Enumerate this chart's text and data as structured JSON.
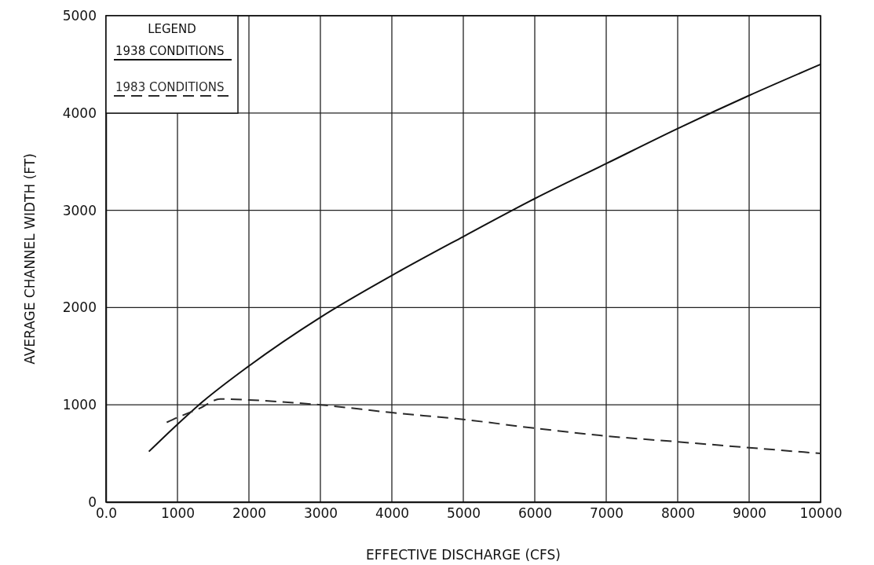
{
  "chart_data": {
    "type": "line",
    "xlabel": "EFFECTIVE DISCHARGE (CFS)",
    "ylabel": "AVERAGE CHANNEL WIDTH (FT)",
    "legend_title": "LEGEND",
    "legend": "top left",
    "grid": true,
    "marker": "none",
    "xlim": [
      0,
      10000
    ],
    "ylim": [
      0,
      5000
    ],
    "xticks": [
      {
        "value": 0,
        "label": "0.0"
      },
      1000,
      2000,
      3000,
      4000,
      5000,
      6000,
      7000,
      8000,
      9000,
      10000
    ],
    "yticks": [
      0,
      1000,
      2000,
      3000,
      4000,
      5000
    ],
    "series": [
      {
        "name": "1938 CONDITIONS",
        "color": "#111111",
        "line_style": "solid",
        "x": [
          600,
          1000,
          1300,
          2000,
          3000,
          4000,
          5000,
          6000,
          7000,
          8000,
          9000,
          10000
        ],
        "values": [
          520,
          800,
          1000,
          1400,
          1900,
          2330,
          2730,
          3120,
          3480,
          3840,
          4180,
          4500
        ]
      },
      {
        "name": "1983 CONDITIONS",
        "color": "#2a2a2a",
        "line_style": "dashed",
        "x": [
          850,
          1000,
          1300,
          1600,
          2000,
          3000,
          4000,
          5000,
          6000,
          7000,
          8000,
          9000,
          10000
        ],
        "values": [
          820,
          870,
          960,
          1060,
          1050,
          1000,
          920,
          850,
          760,
          680,
          620,
          560,
          500
        ]
      }
    ]
  }
}
